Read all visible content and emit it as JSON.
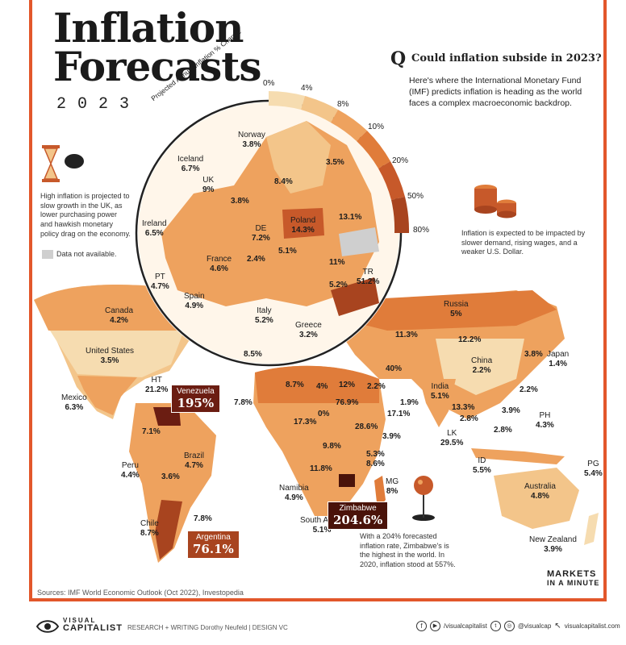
{
  "header": {
    "title_line1": "Inflation",
    "title_line2": "Forecasts",
    "year": "2023",
    "question_letter": "Q",
    "question": "Could inflation subside in 2023?",
    "intro": "Here's where the International Monetary Fund (IMF) predicts inflation is heading as the world faces a complex macroeconomic backdrop."
  },
  "scale": {
    "title": "Projected Annual Inflation % Change",
    "ticks": [
      "0%",
      "4%",
      "8%",
      "10%",
      "20%",
      "50%",
      "80%"
    ],
    "colors": [
      "#f6dcb0",
      "#f3c58a",
      "#eea25e",
      "#e07c3a",
      "#c7592a",
      "#a8441f"
    ]
  },
  "notes": {
    "uk_note": "High inflation is projected to slow growth in the UK, as lower purchasing power and hawkish monetary policy drag on the economy.",
    "no_data": "Data not available.",
    "coins_note": "Inflation is expected to be impacted by slower demand, rising wages, and a weaker U.S. Dollar.",
    "zimbabwe_note": "With a 204% forecasted inflation rate, Zimbabwe's is the highest in the world. In 2020, inflation stood at 557%."
  },
  "europe": [
    {
      "name": "Norway",
      "value": "3.8%"
    },
    {
      "name": "Iceland",
      "value": "6.7%"
    },
    {
      "name": "UK",
      "value": "9%"
    },
    {
      "name": "Ireland",
      "value": "6.5%"
    },
    {
      "name": "DE",
      "value": "7.2%"
    },
    {
      "name": "Poland",
      "value": "14.3%"
    },
    {
      "name": "France",
      "value": "4.6%"
    },
    {
      "name": "PT",
      "value": "4.7%"
    },
    {
      "name": "Spain",
      "value": "4.9%"
    },
    {
      "name": "Italy",
      "value": "5.2%"
    },
    {
      "name": "Greece",
      "value": "3.2%"
    },
    {
      "name": "TR",
      "value": "51.2%"
    }
  ],
  "europe_unnamed": [
    "3.5%",
    "8.4%",
    "3.8%",
    "13.1%",
    "5.1%",
    "2.4%",
    "11%",
    "5.2%",
    "8.5%"
  ],
  "world": [
    {
      "name": "Canada",
      "value": "4.2%"
    },
    {
      "name": "United States",
      "value": "3.5%"
    },
    {
      "name": "HT",
      "value": "21.2%"
    },
    {
      "name": "Mexico",
      "value": "6.3%"
    },
    {
      "name": "Peru",
      "value": "4.4%"
    },
    {
      "name": "Brazil",
      "value": "4.7%"
    },
    {
      "name": "Chile",
      "value": "8.7%"
    },
    {
      "name": "Russia",
      "value": "5%"
    },
    {
      "name": "China",
      "value": "2.2%"
    },
    {
      "name": "Japan",
      "value": "1.4%"
    },
    {
      "name": "India",
      "value": "5.1%"
    },
    {
      "name": "PH",
      "value": "4.3%"
    },
    {
      "name": "LK",
      "value": "29.5%"
    },
    {
      "name": "ID",
      "value": "5.5%"
    },
    {
      "name": "PG",
      "value": "5.4%"
    },
    {
      "name": "Australia",
      "value": "4.8%"
    },
    {
      "name": "New Zealand",
      "value": "3.9%"
    },
    {
      "name": "Namibia",
      "value": "4.9%"
    },
    {
      "name": "South Africa",
      "value": "5.1%"
    },
    {
      "name": "MG",
      "value": "8%"
    }
  ],
  "highlights": {
    "venezuela": {
      "name": "Venezuela",
      "value": "195%"
    },
    "argentina": {
      "name": "Argentina",
      "value": "76.1%"
    },
    "zimbabwe": {
      "name": "Zimbabwe",
      "value": "204.6%"
    }
  },
  "world_unnamed": [
    "11.3%",
    "12.2%",
    "3.8%",
    "40%",
    "2.2%",
    "2.2%",
    "8.7%",
    "4%",
    "12%",
    "7.8%",
    "76.9%",
    "0%",
    "17.3%",
    "28.6%",
    "1.9%",
    "17.1%",
    "13.3%",
    "2.8%",
    "3.9%",
    "2.8%",
    "9.8%",
    "3.9%",
    "11.8%",
    "5.3%",
    "8.6%",
    "7.1%",
    "3.6%",
    "7.8%"
  ],
  "source": "Sources: IMF World Economic Outlook (Oct 2022), Investopedia",
  "brand": {
    "markets_line1": "MARKETS",
    "markets_line2": "IN A MINUTE",
    "vc_line1": "VISUAL",
    "vc_line2": "CAPITALIST",
    "credits": "RESEARCH + WRITING Dorothy Neufeld  |  DESIGN VC",
    "handle1": "/visualcapitalist",
    "handle2": "@visualcap",
    "site": "visualcapitalist.com"
  }
}
